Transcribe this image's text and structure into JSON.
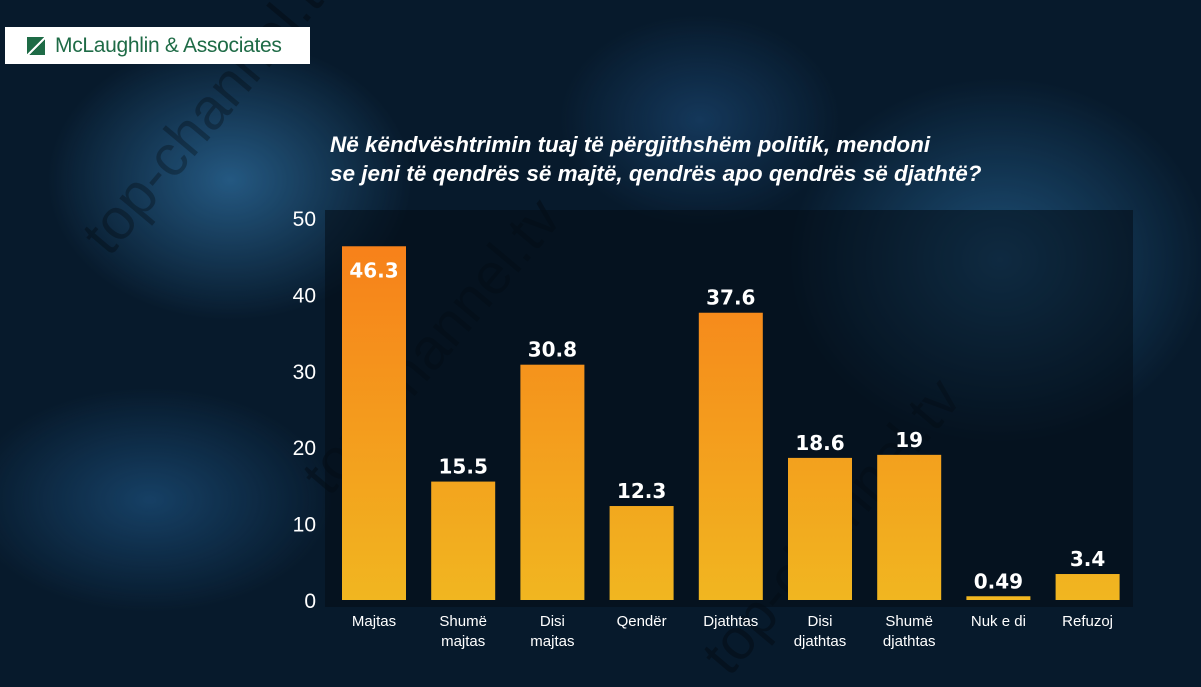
{
  "logo": {
    "text": "McLaughlin & Associates"
  },
  "watermark": "top-channel.tv",
  "colors": {
    "bar_top": "#f7801a",
    "bar_bottom": "#f1b620",
    "label": "#ffffff"
  },
  "chart_data": {
    "type": "bar",
    "title": [
      "Në këndvështrimin tuaj të përgjithshëm politik, mendoni",
      "se jeni të qendrës së majtë, qendrës apo qendrës së djathtë?"
    ],
    "categories": [
      [
        "Majtas"
      ],
      [
        "Shumë",
        "majtas"
      ],
      [
        "Disi",
        "majtas"
      ],
      [
        "Qendër"
      ],
      [
        "Djathtas"
      ],
      [
        "Disi",
        "djathtas"
      ],
      [
        "Shumë",
        "djathtas"
      ],
      [
        "Nuk e di"
      ],
      [
        "Refuzoj"
      ]
    ],
    "values": [
      46.3,
      15.5,
      30.8,
      12.3,
      37.6,
      18.6,
      19,
      0.49,
      3.4
    ],
    "value_labels": [
      "46.3",
      "15.5",
      "30.8",
      "12.3",
      "37.6",
      "18.6",
      "19",
      "0.49",
      "3.4"
    ],
    "ylim": [
      0,
      50
    ],
    "yticks": [
      0,
      10,
      20,
      30,
      40,
      50
    ],
    "xlabel": "",
    "ylabel": "",
    "grid": false
  }
}
